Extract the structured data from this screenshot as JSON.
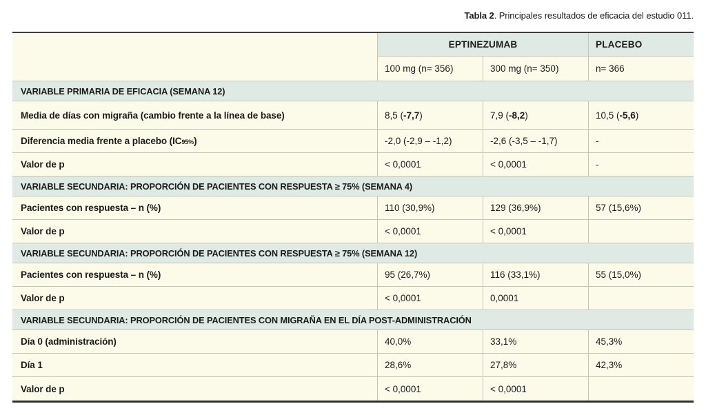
{
  "caption": {
    "bold": "Tabla 2",
    "rest": ". Principales resultados de eficacia del estudio 011."
  },
  "colors": {
    "cream_bg": "#fcfae9",
    "green_bg": "#dfeae4",
    "grid_line": "#c3c3b9",
    "top_border": "#3d3d3d",
    "bottom_border": "#2e2e2e",
    "text": "#1b1b1b"
  },
  "table": {
    "header": {
      "group_labels": [
        "EPTINEZUMAB",
        "PLACEBO"
      ],
      "sub_labels": [
        "100 mg (n= 356)",
        "300 mg (n= 350)",
        "n= 366"
      ]
    },
    "rows": [
      {
        "type": "section",
        "label": "VARIABLE PRIMARIA DE EFICACIA (SEMANA 12)"
      },
      {
        "type": "data",
        "label": [
          {
            "t": "Media de días con migraña (cambio frente a la línea de base)"
          }
        ],
        "values": [
          [
            {
              "t": "8,5 ("
            },
            {
              "t": "-7,7",
              "b": true
            },
            {
              "t": ")"
            }
          ],
          [
            {
              "t": "7,9 ("
            },
            {
              "t": "-8,2",
              "b": true
            },
            {
              "t": ")"
            }
          ],
          [
            {
              "t": "10,5 ("
            },
            {
              "t": "-5,6",
              "b": true
            },
            {
              "t": ")"
            }
          ]
        ]
      },
      {
        "type": "data",
        "label": [
          {
            "t": "Diferencia media frente a placebo (IC"
          },
          {
            "t": "95%",
            "sub": true
          },
          {
            "t": ")"
          }
        ],
        "values": [
          [
            {
              "t": "-2,0 (-2,9 – -1,2)"
            }
          ],
          [
            {
              "t": "-2,6 (-3,5 – -1,7)"
            }
          ],
          [
            {
              "t": "-"
            }
          ]
        ]
      },
      {
        "type": "data",
        "label": [
          {
            "t": "Valor de p"
          }
        ],
        "values": [
          [
            {
              "t": "< 0,0001"
            }
          ],
          [
            {
              "t": "< 0,0001"
            }
          ],
          [
            {
              "t": "-"
            }
          ]
        ]
      },
      {
        "type": "section",
        "label": "VARIABLE SECUNDARIA: PROPORCIÓN DE PACIENTES CON RESPUESTA ≥ 75% (SEMANA 4)"
      },
      {
        "type": "data",
        "label": [
          {
            "t": "Pacientes con respuesta – n (%)"
          }
        ],
        "values": [
          [
            {
              "t": "110 (30,9%)"
            }
          ],
          [
            {
              "t": "129 (36,9%)"
            }
          ],
          [
            {
              "t": "57 (15,6%)"
            }
          ]
        ]
      },
      {
        "type": "data",
        "label": [
          {
            "t": "Valor de p"
          }
        ],
        "values": [
          [
            {
              "t": "< 0,0001"
            }
          ],
          [
            {
              "t": "< 0,0001"
            }
          ],
          [
            {
              "t": ""
            }
          ]
        ]
      },
      {
        "type": "section",
        "label": "VARIABLE SECUNDARIA: PROPORCIÓN DE PACIENTES CON RESPUESTA ≥ 75% (SEMANA 12)"
      },
      {
        "type": "data",
        "label": [
          {
            "t": "Pacientes con respuesta – n (%)"
          }
        ],
        "values": [
          [
            {
              "t": "95 (26,7%)"
            }
          ],
          [
            {
              "t": "116 (33,1%)"
            }
          ],
          [
            {
              "t": "55 (15,0%)"
            }
          ]
        ]
      },
      {
        "type": "data",
        "label": [
          {
            "t": "Valor de p"
          }
        ],
        "values": [
          [
            {
              "t": "< 0,0001"
            }
          ],
          [
            {
              "t": "0,0001"
            }
          ],
          [
            {
              "t": ""
            }
          ]
        ]
      },
      {
        "type": "section",
        "label": "VARIABLE SECUNDARIA: PROPORCIÓN DE PACIENTES CON MIGRAÑA EN EL DÍA POST-ADMINISTRACIÓN"
      },
      {
        "type": "data",
        "label": [
          {
            "t": "Día 0 (administración)"
          }
        ],
        "values": [
          [
            {
              "t": "40,0%"
            }
          ],
          [
            {
              "t": "33,1%"
            }
          ],
          [
            {
              "t": "45,3%"
            }
          ]
        ]
      },
      {
        "type": "data",
        "label": [
          {
            "t": "Día 1"
          }
        ],
        "values": [
          [
            {
              "t": "28,6%"
            }
          ],
          [
            {
              "t": "27,8%"
            }
          ],
          [
            {
              "t": "42,3%"
            }
          ]
        ]
      },
      {
        "type": "data",
        "label": [
          {
            "t": "Valor de p"
          }
        ],
        "values": [
          [
            {
              "t": "< 0,0001"
            }
          ],
          [
            {
              "t": "< 0,0001"
            }
          ],
          [
            {
              "t": ""
            }
          ]
        ]
      }
    ]
  }
}
